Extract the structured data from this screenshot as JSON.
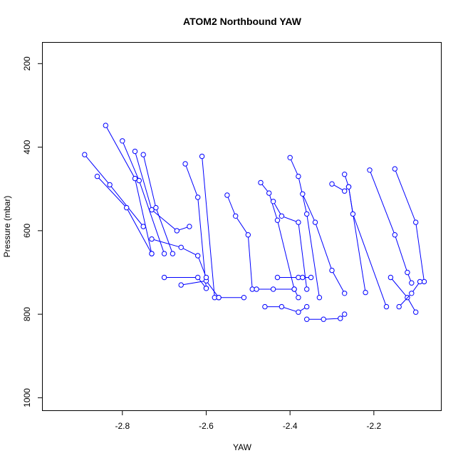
{
  "chart_data": {
    "type": "line",
    "title": "ATOM2 Northbound YAW",
    "xlabel": "YAW",
    "ylabel": "Pressure (mbar)",
    "xlim": [
      -2.99,
      -2.04
    ],
    "ylim": [
      1030,
      150
    ],
    "y_reversed": true,
    "grid": false,
    "legend": "none",
    "marker": "open-circle",
    "color": "#0000ff",
    "x_ticks": [
      -2.8,
      -2.6,
      -2.4,
      -2.2
    ],
    "x_tick_labels": [
      "-2.8",
      "-2.6",
      "-2.4",
      "-2.2"
    ],
    "y_ticks": [
      200,
      400,
      600,
      800,
      1000
    ],
    "y_tick_labels": [
      "200",
      "400",
      "600",
      "800",
      "1000"
    ],
    "series": [
      {
        "x": [
          -2.89,
          -2.83,
          -2.75
        ],
        "y": [
          418,
          490,
          590
        ]
      },
      {
        "x": [
          -2.84,
          -2.77,
          -2.73
        ],
        "y": [
          348,
          475,
          655
        ]
      },
      {
        "x": [
          -2.86,
          -2.79,
          -2.73
        ],
        "y": [
          470,
          545,
          655
        ]
      },
      {
        "x": [
          -2.8,
          -2.76,
          -2.7
        ],
        "y": [
          385,
          480,
          655
        ]
      },
      {
        "x": [
          -2.75,
          -2.72,
          -2.68
        ],
        "y": [
          418,
          545,
          655
        ]
      },
      {
        "x": [
          -2.77,
          -2.73,
          -2.67,
          -2.64
        ],
        "y": [
          410,
          550,
          600,
          590
        ]
      },
      {
        "x": [
          -2.65,
          -2.62,
          -2.6
        ],
        "y": [
          440,
          520,
          738
        ]
      },
      {
        "x": [
          -2.61,
          -2.58,
          -2.57,
          -2.51
        ],
        "y": [
          422,
          760,
          760,
          760
        ]
      },
      {
        "x": [
          -2.55,
          -2.53,
          -2.5,
          -2.49
        ],
        "y": [
          515,
          565,
          610,
          740
        ]
      },
      {
        "x": [
          -2.47,
          -2.45,
          -2.43,
          -2.39
        ],
        "y": [
          485,
          510,
          575,
          740
        ]
      },
      {
        "x": [
          -2.44,
          -2.42,
          -2.38,
          -2.36
        ],
        "y": [
          530,
          565,
          580,
          740
        ]
      },
      {
        "x": [
          -2.4,
          -2.38,
          -2.36,
          -2.33
        ],
        "y": [
          425,
          470,
          560,
          760
        ]
      },
      {
        "x": [
          -2.37,
          -2.34,
          -2.3,
          -2.27
        ],
        "y": [
          512,
          580,
          695,
          750
        ]
      },
      {
        "x": [
          -2.3,
          -2.27,
          -2.26,
          -2.22
        ],
        "y": [
          488,
          505,
          495,
          748
        ]
      },
      {
        "x": [
          -2.27,
          -2.26,
          -2.25,
          -2.17
        ],
        "y": [
          465,
          495,
          560,
          782
        ]
      },
      {
        "x": [
          -2.21,
          -2.15,
          -2.12,
          -2.11
        ],
        "y": [
          455,
          610,
          700,
          725
        ]
      },
      {
        "x": [
          -2.15,
          -2.1,
          -2.08
        ],
        "y": [
          452,
          580,
          722
        ]
      },
      {
        "x": [
          -2.7,
          -2.62,
          -2.6
        ],
        "y": [
          712,
          712,
          738
        ]
      },
      {
        "x": [
          -2.66,
          -2.6,
          -2.57
        ],
        "y": [
          730,
          720,
          760
        ]
      },
      {
        "x": [
          -2.48,
          -2.44,
          -2.39,
          -2.38
        ],
        "y": [
          740,
          740,
          740,
          760
        ]
      },
      {
        "x": [
          -2.46,
          -2.42,
          -2.38,
          -2.36
        ],
        "y": [
          782,
          782,
          795,
          782
        ]
      },
      {
        "x": [
          -2.36,
          -2.32,
          -2.28,
          -2.27
        ],
        "y": [
          812,
          812,
          810,
          800
        ]
      },
      {
        "x": [
          -2.43,
          -2.38,
          -2.37,
          -2.35
        ],
        "y": [
          712,
          712,
          712,
          712
        ]
      },
      {
        "x": [
          -2.16,
          -2.12,
          -2.1
        ],
        "y": [
          712,
          760,
          795
        ]
      },
      {
        "x": [
          -2.14,
          -2.11,
          -2.09
        ],
        "y": [
          782,
          750,
          722
        ]
      },
      {
        "x": [
          -2.73,
          -2.66,
          -2.62,
          -2.6
        ],
        "y": [
          620,
          640,
          660,
          712
        ]
      }
    ]
  }
}
